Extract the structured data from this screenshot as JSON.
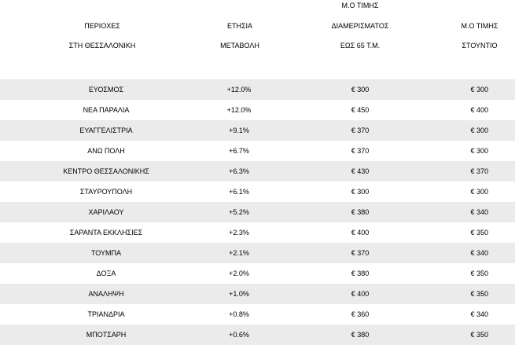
{
  "header": {
    "area": [
      "ΠΕΡΙΟΧΕΣ",
      "ΣΤΗ ΘΕΣΣΑΛΟΝΙΚΗ"
    ],
    "change": [
      "ΕΤΗΣΙΑ",
      "ΜΕΤΑΒΟΛΗ"
    ],
    "apartment": [
      "Μ.Ο ΤΙΜΗΣ",
      "ΔΙΑΜΕΡΙΣΜΑΤΟΣ",
      "ΕΩΣ 65 Τ.Μ."
    ],
    "studio": [
      "Μ.Ο ΤΙΜΗΣ",
      "ΣΤΟΥΝΤΙΟ"
    ]
  },
  "rows": [
    {
      "area": "ΕΥΟΣΜΟΣ",
      "change": "+12.0%",
      "apartment": "€ 300",
      "studio": "€ 300"
    },
    {
      "area": "ΝΕΑ ΠΑΡΑΛΙΑ",
      "change": "+12.0%",
      "apartment": "€ 450",
      "studio": "€ 400"
    },
    {
      "area": "ΕΥΑΓΓΕΛΙΣΤΡΙΑ",
      "change": "+9.1%",
      "apartment": "€ 370",
      "studio": "€ 300"
    },
    {
      "area": "ΑΝΩ ΠΟΛΗ",
      "change": "+6.7%",
      "apartment": "€ 370",
      "studio": "€ 300"
    },
    {
      "area": "ΚΕΝΤΡΟ ΘΕΣΣΑΛΟΝΙΚΗΣ",
      "change": "+6.3%",
      "apartment": "€ 430",
      "studio": "€ 370"
    },
    {
      "area": "ΣΤΑΥΡΟΥΠΟΛΗ",
      "change": "+6.1%",
      "apartment": "€ 300",
      "studio": "€ 300"
    },
    {
      "area": "ΧΑΡΙΛΑΟΥ",
      "change": "+5.2%",
      "apartment": "€ 380",
      "studio": "€ 340"
    },
    {
      "area": "ΣΑΡΑΝΤΑ ΕΚΚΛΗΣΙΕΣ",
      "change": "+2.3%",
      "apartment": "€ 400",
      "studio": "€ 350"
    },
    {
      "area": "ΤΟΥΜΠΑ",
      "change": "+2.1%",
      "apartment": "€ 370",
      "studio": "€ 340"
    },
    {
      "area": "ΔΟΞΑ",
      "change": "+2.0%",
      "apartment": "€ 380",
      "studio": "€ 350"
    },
    {
      "area": "ΑΝΑΛΗΨΗ",
      "change": "+1.0%",
      "apartment": "€ 400",
      "studio": "€ 350"
    },
    {
      "area": "ΤΡΙΑΝΔΡΙΑ",
      "change": "+0.8%",
      "apartment": "€ 360",
      "studio": "€ 340"
    },
    {
      "area": "ΜΠΟΤΣΑΡΗ",
      "change": "+0.6%",
      "apartment": "€ 380",
      "studio": "€ 350"
    }
  ]
}
